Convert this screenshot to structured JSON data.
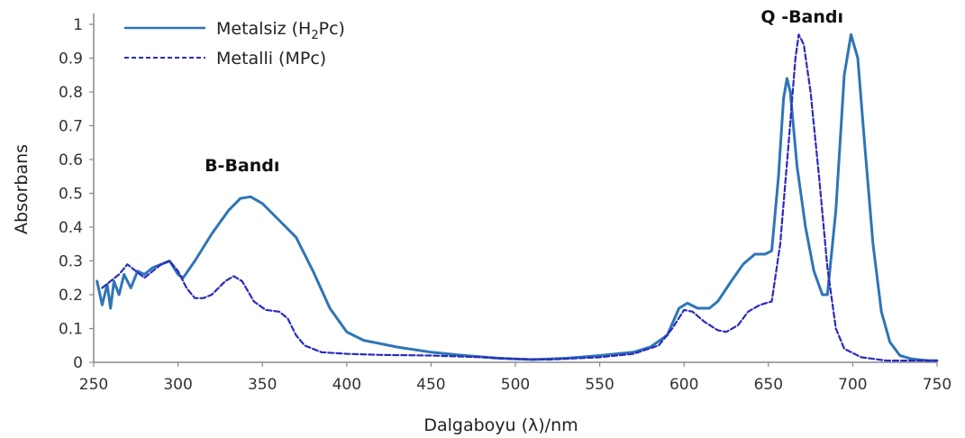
{
  "chart_data": {
    "type": "line",
    "xlabel": "Dalgaboyu (λ)/nm",
    "ylabel": "Absorbans",
    "xlim": [
      250,
      750
    ],
    "ylim": [
      0,
      1
    ],
    "x_ticks": [
      250,
      300,
      350,
      400,
      450,
      500,
      550,
      600,
      650,
      700,
      750
    ],
    "y_ticks": [
      0,
      0.1,
      0.2,
      0.3,
      0.4,
      0.5,
      0.6,
      0.7,
      0.8,
      0.9,
      1
    ],
    "y_tick_labels": [
      "0",
      "0.1",
      "0.2",
      "0.3",
      "0.4",
      "0.5",
      "0.6",
      "0.7",
      "0.8",
      "0.9",
      "1"
    ],
    "grid": false,
    "legend_position": "top-left",
    "legend": {
      "metalsiz_label": "Metalsiz (H",
      "metalsiz_subscript": "2",
      "metalsiz_suffix": "Pc)",
      "metalli_label": "Metalli (MPc)"
    },
    "series": [
      {
        "name": "Metalsiz (H2Pc)",
        "color": "#2e75b6",
        "style": "solid",
        "points": [
          [
            252,
            0.24
          ],
          [
            255,
            0.17
          ],
          [
            258,
            0.23
          ],
          [
            260,
            0.16
          ],
          [
            262,
            0.24
          ],
          [
            265,
            0.2
          ],
          [
            268,
            0.26
          ],
          [
            272,
            0.22
          ],
          [
            276,
            0.27
          ],
          [
            280,
            0.26
          ],
          [
            285,
            0.28
          ],
          [
            290,
            0.29
          ],
          [
            295,
            0.3
          ],
          [
            300,
            0.26
          ],
          [
            303,
            0.25
          ],
          [
            310,
            0.3
          ],
          [
            320,
            0.38
          ],
          [
            330,
            0.45
          ],
          [
            337,
            0.485
          ],
          [
            343,
            0.49
          ],
          [
            350,
            0.47
          ],
          [
            360,
            0.42
          ],
          [
            370,
            0.37
          ],
          [
            380,
            0.27
          ],
          [
            390,
            0.16
          ],
          [
            400,
            0.09
          ],
          [
            410,
            0.065
          ],
          [
            430,
            0.045
          ],
          [
            450,
            0.03
          ],
          [
            470,
            0.02
          ],
          [
            490,
            0.012
          ],
          [
            510,
            0.008
          ],
          [
            530,
            0.012
          ],
          [
            550,
            0.02
          ],
          [
            570,
            0.03
          ],
          [
            580,
            0.045
          ],
          [
            590,
            0.08
          ],
          [
            597,
            0.16
          ],
          [
            602,
            0.175
          ],
          [
            608,
            0.16
          ],
          [
            615,
            0.16
          ],
          [
            620,
            0.18
          ],
          [
            628,
            0.24
          ],
          [
            635,
            0.29
          ],
          [
            642,
            0.32
          ],
          [
            648,
            0.32
          ],
          [
            652,
            0.33
          ],
          [
            656,
            0.55
          ],
          [
            659,
            0.78
          ],
          [
            661,
            0.84
          ],
          [
            663,
            0.8
          ],
          [
            667,
            0.58
          ],
          [
            672,
            0.4
          ],
          [
            677,
            0.27
          ],
          [
            682,
            0.2
          ],
          [
            685,
            0.2
          ],
          [
            690,
            0.45
          ],
          [
            695,
            0.85
          ],
          [
            699,
            0.97
          ],
          [
            703,
            0.9
          ],
          [
            707,
            0.65
          ],
          [
            712,
            0.35
          ],
          [
            717,
            0.15
          ],
          [
            722,
            0.06
          ],
          [
            728,
            0.02
          ],
          [
            735,
            0.01
          ],
          [
            745,
            0.005
          ],
          [
            750,
            0.005
          ]
        ]
      },
      {
        "name": "Metalli (MPc)",
        "color": "#2b2bbf",
        "style": "dashed",
        "points": [
          [
            255,
            0.22
          ],
          [
            260,
            0.24
          ],
          [
            265,
            0.26
          ],
          [
            270,
            0.29
          ],
          [
            275,
            0.27
          ],
          [
            280,
            0.25
          ],
          [
            285,
            0.27
          ],
          [
            290,
            0.29
          ],
          [
            295,
            0.3
          ],
          [
            300,
            0.27
          ],
          [
            305,
            0.22
          ],
          [
            310,
            0.19
          ],
          [
            315,
            0.19
          ],
          [
            320,
            0.2
          ],
          [
            328,
            0.24
          ],
          [
            333,
            0.255
          ],
          [
            338,
            0.24
          ],
          [
            345,
            0.18
          ],
          [
            352,
            0.155
          ],
          [
            360,
            0.15
          ],
          [
            365,
            0.13
          ],
          [
            370,
            0.08
          ],
          [
            375,
            0.05
          ],
          [
            385,
            0.03
          ],
          [
            400,
            0.025
          ],
          [
            420,
            0.022
          ],
          [
            450,
            0.02
          ],
          [
            480,
            0.015
          ],
          [
            500,
            0.01
          ],
          [
            520,
            0.008
          ],
          [
            550,
            0.015
          ],
          [
            570,
            0.025
          ],
          [
            585,
            0.05
          ],
          [
            593,
            0.1
          ],
          [
            600,
            0.155
          ],
          [
            605,
            0.15
          ],
          [
            612,
            0.12
          ],
          [
            620,
            0.095
          ],
          [
            625,
            0.09
          ],
          [
            632,
            0.11
          ],
          [
            638,
            0.15
          ],
          [
            645,
            0.17
          ],
          [
            652,
            0.18
          ],
          [
            657,
            0.35
          ],
          [
            662,
            0.65
          ],
          [
            666,
            0.9
          ],
          [
            668,
            0.97
          ],
          [
            671,
            0.94
          ],
          [
            675,
            0.8
          ],
          [
            680,
            0.55
          ],
          [
            685,
            0.28
          ],
          [
            690,
            0.1
          ],
          [
            695,
            0.04
          ],
          [
            705,
            0.015
          ],
          [
            720,
            0.005
          ],
          [
            750,
            0.005
          ]
        ]
      }
    ],
    "annotations": [
      {
        "text": "B-Bandı",
        "x": 338,
        "y": 0.565
      },
      {
        "text": "Q -Bandı",
        "x": 670,
        "y": 1.005
      }
    ]
  }
}
